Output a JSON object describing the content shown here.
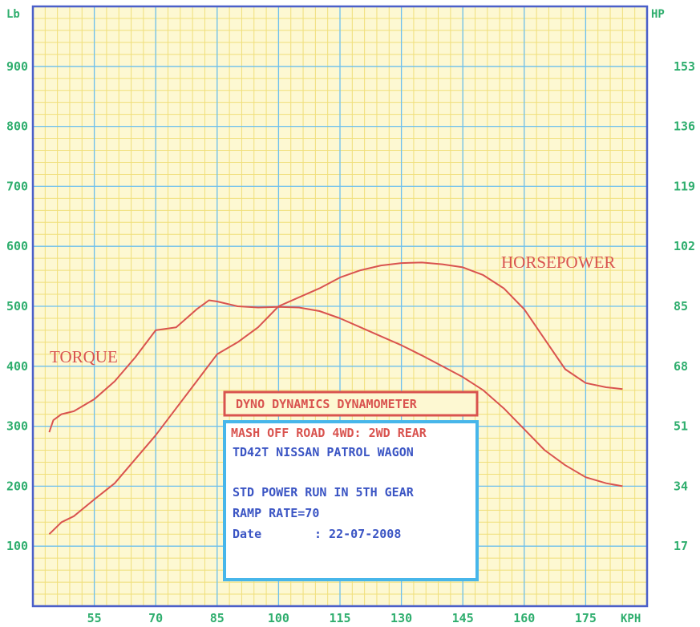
{
  "chart_data": {
    "type": "line",
    "x_unit": "KPH",
    "x_ticks": [
      55,
      70,
      85,
      100,
      115,
      130,
      145,
      160,
      175
    ],
    "xlim": [
      40,
      190
    ],
    "left_unit": "Lb",
    "left_ticks": [
      100,
      200,
      300,
      400,
      500,
      600,
      700,
      800,
      900
    ],
    "left_ylim": [
      0,
      1000
    ],
    "right_unit": "HP",
    "right_ticks": [
      17,
      34,
      51,
      68,
      85,
      102,
      119,
      136,
      153
    ],
    "right_ylim": [
      0,
      170
    ],
    "grid": true,
    "series": [
      {
        "name": "TORQUE",
        "axis": "left",
        "color": "#d9534f",
        "x": [
          44,
          45,
          47,
          50,
          55,
          60,
          65,
          70,
          75,
          80,
          83,
          85,
          90,
          95,
          100,
          105,
          110,
          115,
          120,
          125,
          130,
          135,
          140,
          145,
          150,
          155,
          160,
          165,
          170,
          175,
          180,
          184
        ],
        "y": [
          290,
          310,
          320,
          325,
          345,
          375,
          415,
          460,
          465,
          495,
          510,
          508,
          500,
          498,
          499,
          498,
          492,
          480,
          465,
          450,
          435,
          418,
          400,
          382,
          360,
          330,
          295,
          260,
          235,
          215,
          205,
          200
        ]
      },
      {
        "name": "HORSEPOWER",
        "axis": "left",
        "color": "#d9534f",
        "x": [
          44,
          47,
          50,
          55,
          60,
          65,
          70,
          75,
          80,
          85,
          90,
          95,
          100,
          105,
          110,
          115,
          120,
          125,
          130,
          135,
          140,
          145,
          150,
          155,
          160,
          165,
          170,
          175,
          180,
          184
        ],
        "y": [
          120,
          140,
          150,
          178,
          205,
          245,
          285,
          330,
          375,
          420,
          440,
          465,
          500,
          515,
          530,
          548,
          560,
          568,
          572,
          573,
          570,
          565,
          552,
          530,
          495,
          445,
          395,
          372,
          365,
          362
        ]
      }
    ]
  },
  "labels": {
    "torque": "TORQUE",
    "horsepower": "HORSEPOWER"
  },
  "info_box": {
    "title": "DYNO DYNAMICS DYNAMOMETER",
    "line1": "MASH OFF ROAD 4WD: 2WD REAR",
    "line2": "TD42T NISSAN PATROL WAGON",
    "line3": "STD POWER RUN IN 5TH GEAR",
    "line4": "RAMP RATE=70",
    "line5_label": "Date",
    "line5_value": ":  22-07-2008"
  },
  "colors": {
    "paper": "#fdf8d2",
    "minor_grid": "#f0df7a",
    "major_grid": "#6cc0f0",
    "frame": "#4a5fc9",
    "curve": "#d9534f",
    "tick_text": "#2fae6e",
    "info_text": "#3b55c4",
    "info_box_border": "#47b6ea",
    "title_box_border": "#d9534f"
  }
}
